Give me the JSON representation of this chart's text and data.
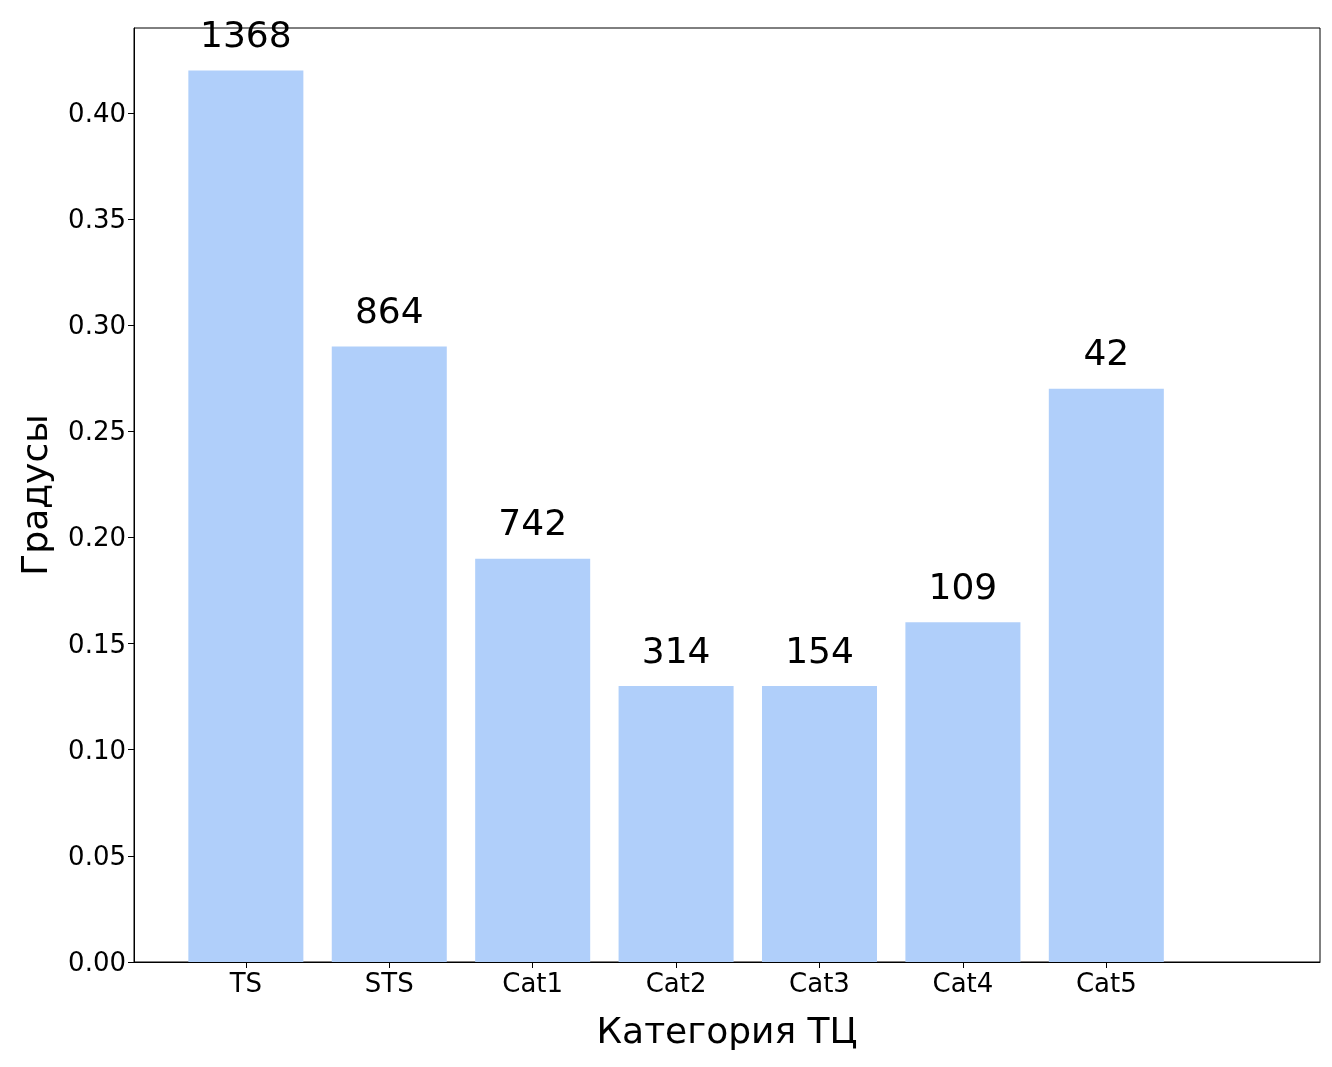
{
  "chart_data": {
    "type": "bar",
    "xlabel": "Категория ТЦ",
    "ylabel": "Градусы",
    "categories": [
      "TS",
      "STS",
      "Cat1",
      "Cat2",
      "Cat3",
      "Cat4",
      "Cat5"
    ],
    "values": [
      0.42,
      0.29,
      0.19,
      0.13,
      0.13,
      0.16,
      0.27
    ],
    "annotations": [
      {
        "text": "1368",
        "x": "TS",
        "y": 0.42
      },
      {
        "text": "864",
        "x": "STS",
        "y": 0.29
      },
      {
        "text": "742",
        "x": "Cat1",
        "y": 0.19
      },
      {
        "text": "314",
        "x": "Cat2",
        "y": 0.13
      },
      {
        "text": "154",
        "x": "Cat3",
        "y": 0.13
      },
      {
        "text": "109",
        "x": "Cat4",
        "y": 0.16
      },
      {
        "text": "42",
        "x": "Cat5",
        "y": 0.27
      }
    ],
    "color": "#b0cffa",
    "ylim": [
      0,
      0.44
    ],
    "yticks": [
      {
        "value": 0,
        "label": "0.00"
      },
      {
        "value": 0.05,
        "label": "0.05"
      },
      {
        "value": 0.1,
        "label": "0.10"
      },
      {
        "value": 0.15,
        "label": "0.15"
      },
      {
        "value": 0.2,
        "label": "0.20"
      },
      {
        "value": 0.25,
        "label": "0.25"
      },
      {
        "value": 0.3,
        "label": "0.30"
      },
      {
        "value": 0.35,
        "label": "0.35"
      },
      {
        "value": 0.4,
        "label": "0.40"
      }
    ],
    "grid": false
  }
}
